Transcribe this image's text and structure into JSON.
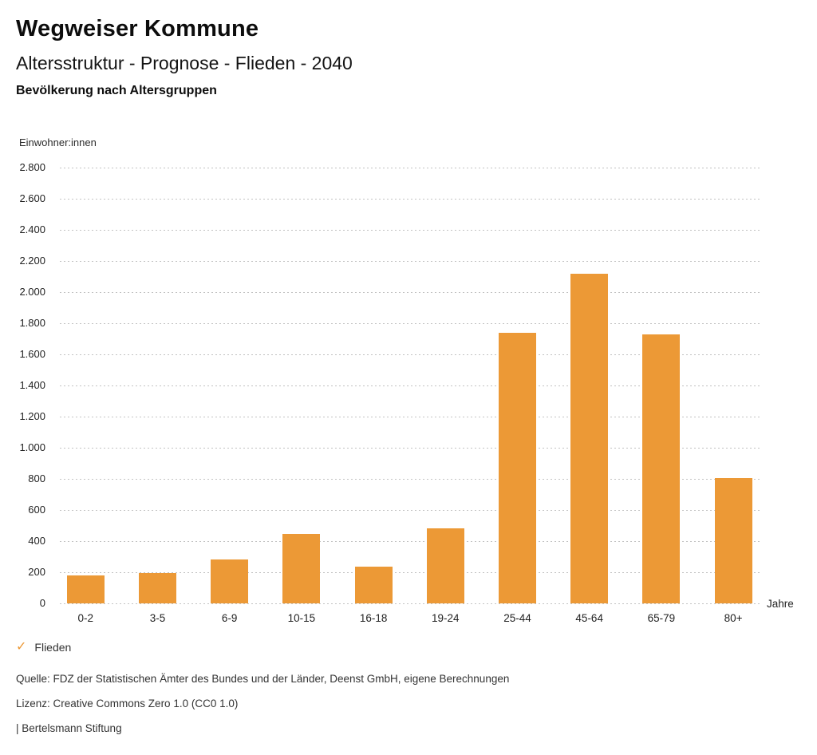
{
  "header": {
    "title": "Wegweiser Kommune",
    "subtitle": "Altersstruktur - Prognose - Flieden - 2040",
    "section_title": "Bevölkerung nach Altersgruppen"
  },
  "chart_data": {
    "type": "bar",
    "title": "Bevölkerung nach Altersgruppen",
    "xlabel": "Jahre",
    "ylabel": "Einwohner:innen",
    "categories": [
      "0-2",
      "3-5",
      "6-9",
      "10-15",
      "16-18",
      "19-24",
      "25-44",
      "45-64",
      "65-79",
      "80+"
    ],
    "values": [
      180,
      195,
      280,
      445,
      235,
      480,
      1740,
      2120,
      1730,
      805
    ],
    "ylim": [
      0,
      2800
    ],
    "ytick_step": 200,
    "ytick_labels": [
      "0",
      "200",
      "400",
      "600",
      "800",
      "1.000",
      "1.200",
      "1.400",
      "1.600",
      "1.800",
      "2.000",
      "2.200",
      "2.400",
      "2.600",
      "2.800"
    ],
    "grid": "horizontal-dotted",
    "legend_position": "bottom-left",
    "series_name": "Flieden"
  },
  "legend": {
    "check_icon": "✓",
    "label": "Flieden"
  },
  "footer": {
    "source": "Quelle: FDZ der Statistischen Ämter des Bundes und der Länder, Deenst GmbH, eigene Berechnungen",
    "license": "Lizenz: Creative Commons Zero 1.0 (CC0 1.0)",
    "attribution": "| Bertelsmann Stiftung"
  },
  "colors": {
    "bar": "#EC9936",
    "accent": "#EC9936",
    "grid": "#C2C2C2",
    "text": "#1A1A1A"
  }
}
